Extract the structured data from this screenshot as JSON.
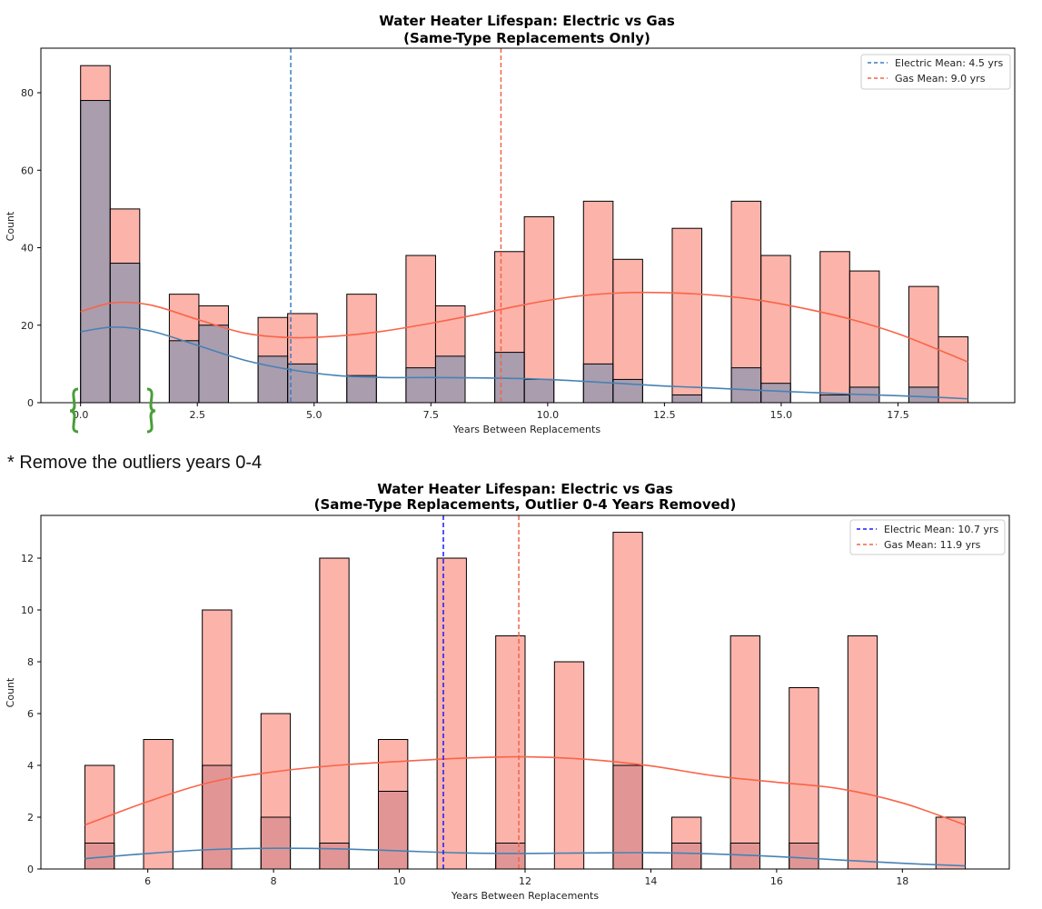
{
  "note": "* Remove the outliers  years 0-4",
  "colors": {
    "gas_bar": "#fa8072",
    "elec_bar": "#4682b4",
    "overlap": "#a090a0",
    "gas_line": "#fa6448",
    "elec_line": "#4682b4",
    "elec_mean_line2": "#1a1aff",
    "bracket": "#4a9e3a"
  },
  "chart_data": [
    {
      "type": "bar",
      "title": "Water Heater Lifespan: Electric vs Gas",
      "subtitle": "(Same-Type Replacements Only)",
      "xlabel": "Years Between Replacements",
      "ylabel": "Count",
      "xlim": [
        -0.85,
        20.0
      ],
      "ylim": [
        0,
        91.5
      ],
      "xticks": [
        0.0,
        2.5,
        5.0,
        7.5,
        10.0,
        12.5,
        15.0,
        17.5
      ],
      "xtick_labels": [
        "0.0",
        "2.5",
        "5.0",
        "7.5",
        "10.0",
        "12.5",
        "15.0",
        "17.5"
      ],
      "yticks": [
        0,
        20,
        40,
        60,
        80
      ],
      "bin_width": 0.633,
      "bins": [
        0,
        0.633,
        1.9,
        2.533,
        3.8,
        4.433,
        5.7,
        6.967,
        7.6,
        8.867,
        9.5,
        10.767,
        11.4,
        12.667,
        13.933,
        14.567,
        15.833,
        16.467,
        17.733,
        18.367
      ],
      "series": [
        {
          "name": "Gas",
          "values": [
            87,
            50,
            28,
            25,
            22,
            23,
            28,
            38,
            25,
            39,
            48,
            52,
            37,
            45,
            52,
            38,
            39,
            34,
            30,
            17
          ]
        },
        {
          "name": "Electric",
          "values": [
            78,
            36,
            16,
            20,
            12,
            10,
            7,
            9,
            12,
            13,
            6,
            10,
            6,
            2,
            9,
            5,
            2,
            4,
            4,
            0
          ]
        }
      ],
      "kde": [
        {
          "name": "Gas",
          "x": [
            0,
            0.7,
            1.5,
            2.5,
            3.5,
            4.5,
            5.5,
            6.5,
            7.5,
            8.5,
            9.5,
            10.5,
            11.5,
            12.5,
            13.5,
            14.5,
            15.5,
            16.5,
            17.5,
            18.5,
            19.0
          ],
          "y": [
            23.5,
            25.8,
            25.2,
            21.5,
            18.0,
            16.8,
            17.2,
            18.5,
            20.5,
            22.8,
            25.3,
            27.3,
            28.3,
            28.4,
            27.8,
            26.5,
            24.3,
            21.5,
            17.8,
            13.0,
            10.5
          ]
        },
        {
          "name": "Electric",
          "x": [
            0,
            0.7,
            1.5,
            2.5,
            3.5,
            4.5,
            5.5,
            6.5,
            7.5,
            8.5,
            9.5,
            10.5,
            11.5,
            12.5,
            13.5,
            14.5,
            15.5,
            16.5,
            17.5,
            18.5,
            19.0
          ],
          "y": [
            18.3,
            19.5,
            18.5,
            14.8,
            11.0,
            8.5,
            7.0,
            6.5,
            6.5,
            6.4,
            6.2,
            5.7,
            5.0,
            4.3,
            3.8,
            3.2,
            2.7,
            2.2,
            1.8,
            1.3,
            1.0
          ]
        }
      ],
      "means": [
        {
          "label": "Electric Mean: 4.5 yrs",
          "value": 4.5,
          "color": "#3a7cc0"
        },
        {
          "label": "Gas Mean: 9.0 yrs",
          "value": 9.0,
          "color": "#f06448"
        }
      ],
      "legend_position": "top-right",
      "annotation": "bracket around years 0-2"
    },
    {
      "type": "bar",
      "title": "Water Heater Lifespan: Electric vs Gas",
      "subtitle": "(Same-Type Replacements, Outlier 0-4 Years Removed)",
      "xlabel": "Years Between Replacements",
      "ylabel": "Count",
      "xlim": [
        4.3,
        19.7
      ],
      "ylim": [
        0,
        13.65
      ],
      "xticks": [
        6,
        8,
        10,
        12,
        14,
        16,
        18
      ],
      "xtick_labels": [
        "6",
        "8",
        "10",
        "12",
        "14",
        "16",
        "18"
      ],
      "yticks": [
        0,
        2,
        4,
        6,
        8,
        10,
        12
      ],
      "bin_width": 0.467,
      "bins": [
        5.0,
        5.933,
        6.867,
        7.8,
        8.733,
        9.667,
        10.6,
        11.533,
        12.467,
        13.4,
        14.333,
        15.267,
        16.2,
        17.133,
        18.533
      ],
      "series": [
        {
          "name": "Gas",
          "values": [
            4,
            5,
            10,
            6,
            12,
            5,
            12,
            9,
            8,
            13,
            2,
            9,
            7,
            9,
            2
          ]
        },
        {
          "name": "Electric",
          "values": [
            1,
            0,
            4,
            2,
            1,
            3,
            0,
            1,
            0,
            4,
            1,
            1,
            1,
            0,
            0
          ]
        }
      ],
      "kde": [
        {
          "name": "Gas",
          "x": [
            5,
            6,
            7,
            8,
            9,
            10,
            11,
            12,
            13,
            14,
            15,
            16,
            17,
            18,
            19
          ],
          "y": [
            1.7,
            2.6,
            3.35,
            3.75,
            4.0,
            4.15,
            4.28,
            4.33,
            4.23,
            3.98,
            3.6,
            3.35,
            3.1,
            2.55,
            1.7
          ]
        },
        {
          "name": "Electric",
          "x": [
            5,
            6,
            7,
            8,
            9,
            10,
            11,
            12,
            13,
            14,
            15,
            16,
            17,
            18,
            19
          ],
          "y": [
            0.4,
            0.6,
            0.75,
            0.8,
            0.78,
            0.7,
            0.62,
            0.6,
            0.62,
            0.63,
            0.58,
            0.48,
            0.35,
            0.22,
            0.12
          ]
        }
      ],
      "means": [
        {
          "label": "Electric Mean: 10.7 yrs",
          "value": 10.7,
          "color": "#1a1aff"
        },
        {
          "label": "Gas Mean: 11.9 yrs",
          "value": 11.9,
          "color": "#f06448"
        }
      ],
      "legend_position": "top-right"
    }
  ]
}
